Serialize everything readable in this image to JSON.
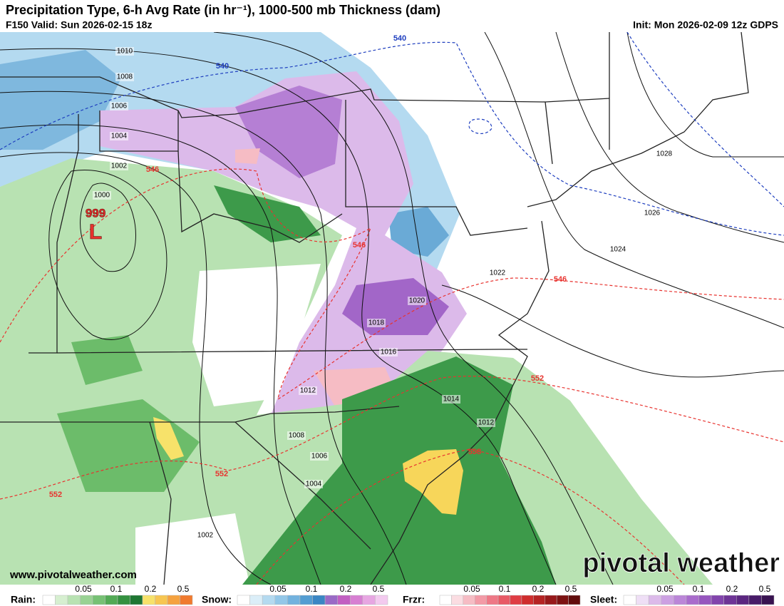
{
  "header": {
    "title": "Precipitation Type, 6-h Avg Rate (in hr⁻¹), 1000-500 mb Thickness (dam)",
    "valid": "F150 Valid: Sun 2026-02-15 18z",
    "init": "Init: Mon 2026-02-09 12z GDPS"
  },
  "map": {
    "isobar_labels": [
      "1010",
      "1008",
      "1006",
      "1004",
      "1002",
      "1000",
      "1028",
      "1026",
      "1024",
      "1022",
      "1020",
      "1018",
      "1016",
      "1014",
      "1012",
      "1012",
      "1008",
      "1006",
      "1004",
      "1002"
    ],
    "low": {
      "pressure": "999",
      "letter": "L"
    },
    "thickness_labels": [
      "540",
      "540",
      "546",
      "546",
      "546",
      "552",
      "552",
      "552",
      "558"
    ]
  },
  "footer": {
    "website": "www.pivotalweather.com",
    "logo": "pivotal weather"
  },
  "legend": [
    {
      "label": "Rain:",
      "ticks": [
        0.05,
        0.1,
        0.2,
        0.5
      ]
    },
    {
      "label": "Snow:",
      "ticks": [
        0.05,
        0.1,
        0.2,
        0.5
      ]
    },
    {
      "label": "Frzr:",
      "ticks": [
        0.05,
        0.1,
        0.2,
        0.5
      ]
    },
    {
      "label": "Sleet:",
      "ticks": [
        0.05,
        0.1,
        0.2,
        0.5
      ]
    }
  ]
}
